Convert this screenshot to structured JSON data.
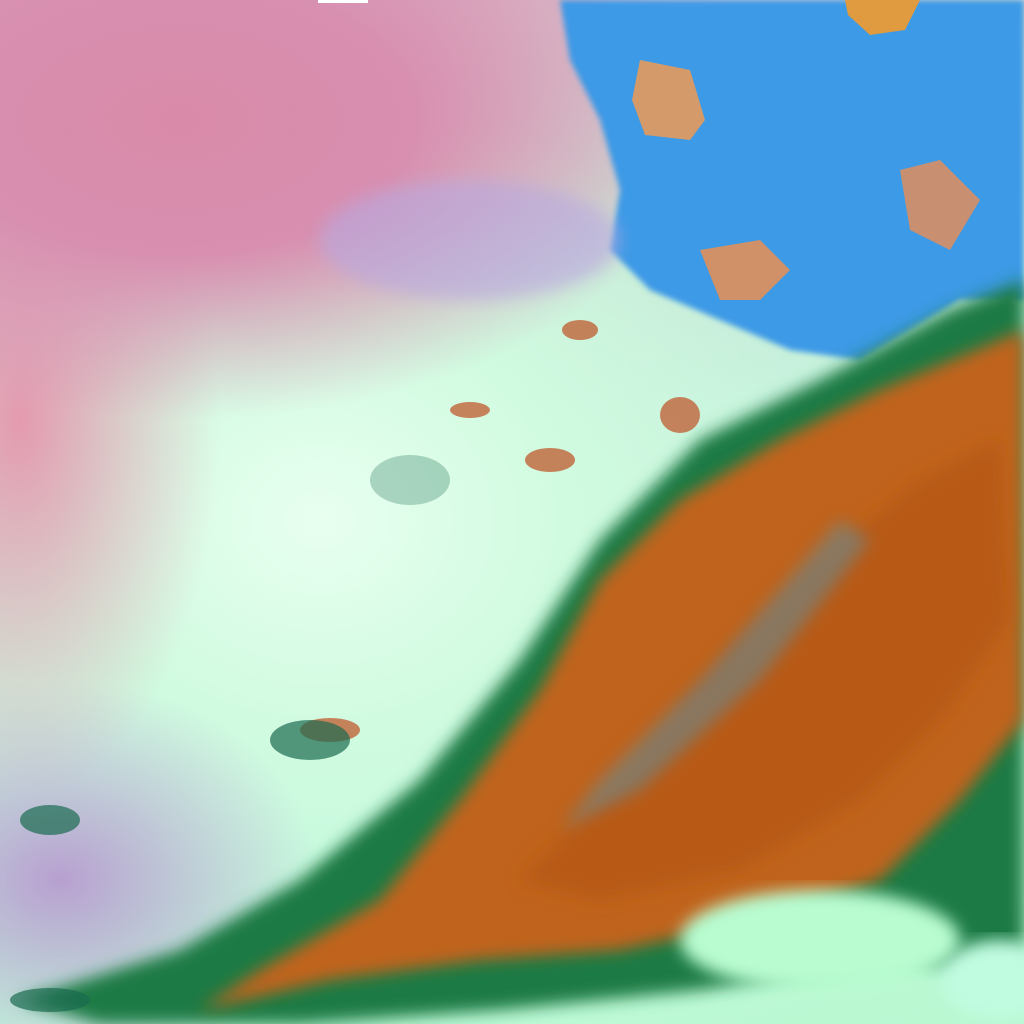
{
  "image": {
    "colors": {
      "land_pink": "#d98aa8",
      "cloud_mint": "#c8fbe0",
      "water_blue": "#3a9be8",
      "cloud_orange": "#c0641c",
      "cloud_green": "#1e7a3c"
    }
  }
}
